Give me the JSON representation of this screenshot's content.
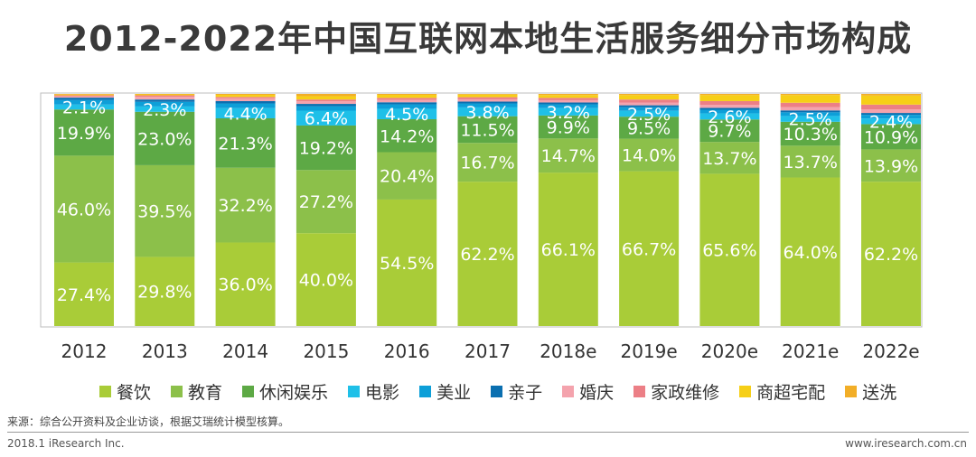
{
  "title": "2012-2022年中国互联网本地生活服务细分市场构成",
  "source": "来源：综合公开资料及企业访谈，根据艾瑞统计模型核算。",
  "footer_left": "2018.1 iResearch Inc.",
  "footer_right": "www.iresearch.com.cn",
  "chart_data": {
    "type": "bar",
    "stacked": true,
    "percent_stacked": true,
    "title": "2012-2022年中国互联网本地生活服务细分市场构成",
    "xlabel": "",
    "ylabel": "",
    "ylim": [
      0,
      100
    ],
    "grid": false,
    "legend_position": "bottom",
    "categories": [
      "2012",
      "2013",
      "2014",
      "2015",
      "2016",
      "2017",
      "2018e",
      "2019e",
      "2020e",
      "2021e",
      "2022e"
    ],
    "series": [
      {
        "name": "餐饮",
        "color": "#a9cc38",
        "labeled": true,
        "values": [
          27.4,
          29.8,
          36.0,
          40.0,
          54.5,
          62.2,
          66.1,
          66.7,
          65.6,
          64.0,
          62.2
        ]
      },
      {
        "name": "教育",
        "color": "#8cc04a",
        "labeled": true,
        "values": [
          46.0,
          39.5,
          32.2,
          27.2,
          20.4,
          16.7,
          14.7,
          14.0,
          13.7,
          13.7,
          13.9
        ]
      },
      {
        "name": "休闲娱乐",
        "color": "#5da945",
        "labeled": true,
        "values": [
          19.9,
          23.0,
          21.3,
          19.2,
          14.2,
          11.5,
          9.9,
          9.5,
          9.7,
          10.3,
          10.9
        ]
      },
      {
        "name": "电影",
        "color": "#1fc0e8",
        "labeled": true,
        "values": [
          2.1,
          2.3,
          4.4,
          6.4,
          4.5,
          3.8,
          3.2,
          2.5,
          2.6,
          2.5,
          2.4
        ]
      },
      {
        "name": "美业",
        "color": "#0d9fd8",
        "labeled": false,
        "values": [
          2.0,
          2.0,
          2.0,
          1.9,
          1.9,
          1.7,
          1.6,
          1.6,
          1.6,
          1.6,
          1.6
        ]
      },
      {
        "name": "亲子",
        "color": "#0a6fb0",
        "labeled": false,
        "values": [
          1.0,
          1.0,
          1.0,
          1.0,
          0.9,
          0.8,
          0.8,
          0.8,
          0.8,
          0.8,
          0.8
        ]
      },
      {
        "name": "婚庆",
        "color": "#f4a3ad",
        "labeled": false,
        "values": [
          0.6,
          1.2,
          1.2,
          1.1,
          1.0,
          1.0,
          1.0,
          1.2,
          1.3,
          1.4,
          1.5
        ]
      },
      {
        "name": "家政维修",
        "color": "#ec7f86",
        "labeled": false,
        "values": [
          0.4,
          0.6,
          0.6,
          0.8,
          0.9,
          0.9,
          1.0,
          1.3,
          1.6,
          1.9,
          2.1
        ]
      },
      {
        "name": "商超宅配",
        "color": "#f6cf17",
        "labeled": false,
        "values": [
          0.3,
          0.4,
          0.9,
          1.4,
          1.3,
          1.1,
          1.2,
          1.9,
          2.6,
          3.3,
          3.9
        ]
      },
      {
        "name": "送洗",
        "color": "#f2ae27",
        "labeled": false,
        "values": [
          0.3,
          0.2,
          0.4,
          1.0,
          0.4,
          0.3,
          0.5,
          0.5,
          0.5,
          0.5,
          0.7
        ]
      }
    ]
  }
}
